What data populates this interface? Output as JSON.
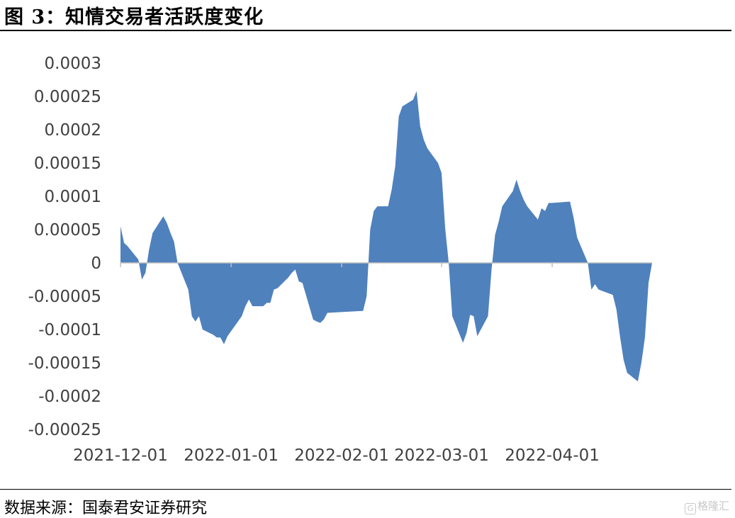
{
  "header": {
    "title": "图 3：知情交易者活跃度变化"
  },
  "footer": {
    "source": "数据来源：国泰君安证券研究",
    "watermark_text": "格隆汇"
  },
  "colors": {
    "area_fill": "#4F81BD",
    "axis_line": "#BFBFBF",
    "tick_text": "#404040"
  },
  "chart_data": {
    "type": "area",
    "title": "",
    "xlabel": "",
    "ylabel": "",
    "ylim": [
      -0.00025,
      0.0003
    ],
    "yticks": [
      0.0003,
      0.00025,
      0.0002,
      0.00015,
      0.0001,
      5e-05,
      0,
      -5e-05,
      -0.0001,
      -0.00015,
      -0.0002,
      -0.00025
    ],
    "ytick_labels": [
      "0.0003",
      "0.00025",
      "0.0002",
      "0.00015",
      "0.0001",
      "0.00005",
      "0",
      "-0.00005",
      "-0.0001",
      "-0.00015",
      "-0.0002",
      "-0.00025"
    ],
    "xtick_labels": [
      "2021-12-01",
      "2022-01-01",
      "2022-02-01",
      "2022-03-01",
      "2022-04-01"
    ],
    "xtick_dates": [
      "2021-12-01",
      "2022-01-01",
      "2022-02-01",
      "2022-03-01",
      "2022-04-01"
    ],
    "grid": false,
    "legend": "none",
    "series": [
      {
        "x": [
          "2021-12-01",
          "2021-12-02",
          "2021-12-03",
          "2021-12-06",
          "2021-12-07",
          "2021-12-08",
          "2021-12-09",
          "2021-12-10",
          "2021-12-13",
          "2021-12-14",
          "2021-12-15",
          "2021-12-16",
          "2021-12-17",
          "2021-12-20",
          "2021-12-21",
          "2021-12-22",
          "2021-12-23",
          "2021-12-24",
          "2021-12-27",
          "2021-12-28",
          "2021-12-29",
          "2021-12-30",
          "2021-12-31",
          "2022-01-04",
          "2022-01-05",
          "2022-01-06",
          "2022-01-07",
          "2022-01-10",
          "2022-01-11",
          "2022-01-12",
          "2022-01-13",
          "2022-01-14",
          "2022-01-17",
          "2022-01-18",
          "2022-01-19",
          "2022-01-20",
          "2022-01-21",
          "2022-01-24",
          "2022-01-25",
          "2022-01-26",
          "2022-01-27",
          "2022-01-28",
          "2022-02-07",
          "2022-02-08",
          "2022-02-09",
          "2022-02-10",
          "2022-02-11",
          "2022-02-14",
          "2022-02-15",
          "2022-02-16",
          "2022-02-17",
          "2022-02-18",
          "2022-02-21",
          "2022-02-22",
          "2022-02-23",
          "2022-02-24",
          "2022-02-25",
          "2022-02-28",
          "2022-03-01",
          "2022-03-02",
          "2022-03-03",
          "2022-03-04",
          "2022-03-07",
          "2022-03-08",
          "2022-03-09",
          "2022-03-10",
          "2022-03-11",
          "2022-03-14",
          "2022-03-15",
          "2022-03-16",
          "2022-03-17",
          "2022-03-18",
          "2022-03-21",
          "2022-03-22",
          "2022-03-23",
          "2022-03-24",
          "2022-03-25",
          "2022-03-28",
          "2022-03-29",
          "2022-03-30",
          "2022-03-31",
          "2022-04-01",
          "2022-04-06",
          "2022-04-07",
          "2022-04-08",
          "2022-04-11",
          "2022-04-12",
          "2022-04-13",
          "2022-04-14",
          "2022-04-15",
          "2022-04-18",
          "2022-04-19",
          "2022-04-20",
          "2022-04-21",
          "2022-04-22",
          "2022-04-25",
          "2022-04-26",
          "2022-04-27",
          "2022-04-28",
          "2022-04-29"
        ],
        "values": [
          5.5e-05,
          3e-05,
          2.5e-05,
          5e-06,
          -2.5e-05,
          -1.5e-05,
          2e-05,
          4.5e-05,
          7e-05,
          6e-05,
          4.5e-05,
          3.2e-05,
          0.0,
          -4e-05,
          -8e-05,
          -8.8e-05,
          -8e-05,
          -0.0001,
          -0.000108,
          -0.000112,
          -0.000112,
          -0.000122,
          -0.00011,
          -8e-05,
          -6.5e-05,
          -5.5e-05,
          -6.5e-05,
          -6.5e-05,
          -6e-05,
          -6e-05,
          -4e-05,
          -3.8e-05,
          -2.2e-05,
          -1.5e-05,
          -1e-05,
          -2.8e-05,
          -3e-05,
          -8.5e-05,
          -8.8e-05,
          -9e-05,
          -8.5e-05,
          -7.5e-05,
          -7.2e-05,
          -5e-05,
          5e-05,
          7.8e-05,
          8.5e-05,
          8.5e-05,
          0.00011,
          0.000145,
          0.00022,
          0.000235,
          0.000245,
          0.000258,
          0.000205,
          0.000185,
          0.000172,
          0.00015,
          0.000135,
          5.2e-05,
          0.0,
          -8e-05,
          -0.00012,
          -0.000105,
          -7.8e-05,
          -8e-05,
          -0.00011,
          -8e-05,
          -1e-05,
          4.2e-05,
          6.2e-05,
          8.5e-05,
          0.000108,
          0.000125,
          0.000108,
          9.5e-05,
          8.5e-05,
          6.5e-05,
          8.2e-05,
          7.8e-05,
          9e-05,
          9e-05,
          9.2e-05,
          6.8e-05,
          3.8e-05,
          0.0,
          -4e-05,
          -3.2e-05,
          -4e-05,
          -4.2e-05,
          -4.8e-05,
          -7e-05,
          -0.00011,
          -0.000145,
          -0.000165,
          -0.000178,
          -0.00015,
          -0.000112,
          -3e-05,
          0.0
        ]
      }
    ]
  }
}
